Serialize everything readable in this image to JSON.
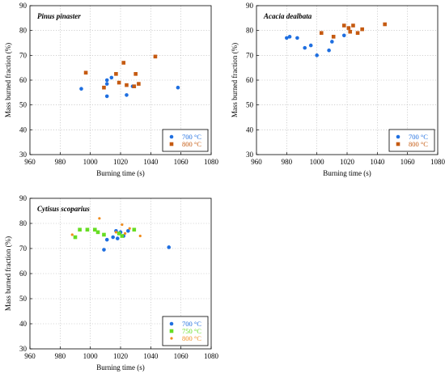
{
  "chart_data": [
    {
      "type": "scatter",
      "title": "Pinus pinaster",
      "xlabel": "Burning time (s)",
      "ylabel": "Mass burned fraction (%)",
      "xlim": [
        960,
        1080
      ],
      "ylim": [
        30,
        90
      ],
      "xticks": [
        "960",
        "980",
        "1000",
        "1020",
        "1040",
        "1060",
        "1080"
      ],
      "yticks": [
        "30",
        "40",
        "50",
        "60",
        "70",
        "80",
        "90"
      ],
      "grid": true,
      "legend_position": "bottom-right",
      "series": [
        {
          "name": "700 °C",
          "color": "#1f6fe0",
          "marker": "circle",
          "points": [
            [
              994,
              56.5
            ],
            [
              1011,
              58.5
            ],
            [
              1011,
              60.0
            ],
            [
              1011,
              53.5
            ],
            [
              1014,
              61.0
            ],
            [
              1024,
              54.0
            ],
            [
              1028,
              57.5
            ],
            [
              1058,
              57.0
            ]
          ]
        },
        {
          "name": "800 °C",
          "color": "#c55a11",
          "marker": "square",
          "points": [
            [
              997,
              63.0
            ],
            [
              1009,
              57.0
            ],
            [
              1017,
              62.5
            ],
            [
              1019,
              59.0
            ],
            [
              1022,
              67.0
            ],
            [
              1024,
              58.0
            ],
            [
              1029,
              57.5
            ],
            [
              1030,
              62.5
            ],
            [
              1032,
              58.5
            ],
            [
              1043,
              69.5
            ]
          ]
        }
      ]
    },
    {
      "type": "scatter",
      "title": "Acacia dealbata",
      "xlabel": "Burning time (s)",
      "ylabel": "Mass burned fraction (%)",
      "xlim": [
        960,
        1080
      ],
      "ylim": [
        30,
        90
      ],
      "xticks": [
        "960",
        "980",
        "1000",
        "1020",
        "1040",
        "1060",
        "1080"
      ],
      "yticks": [
        "30",
        "40",
        "50",
        "60",
        "70",
        "80",
        "90"
      ],
      "grid": true,
      "legend_position": "bottom-right",
      "series": [
        {
          "name": "700 °C",
          "color": "#1f6fe0",
          "marker": "circle",
          "points": [
            [
              980,
              77.0
            ],
            [
              982,
              77.5
            ],
            [
              987,
              77.0
            ],
            [
              992,
              73.0
            ],
            [
              996,
              74.0
            ],
            [
              1000,
              70.0
            ],
            [
              1008,
              72.0
            ],
            [
              1010,
              75.5
            ],
            [
              1018,
              78.0
            ]
          ]
        },
        {
          "name": "800 °C",
          "color": "#c55a11",
          "marker": "square",
          "points": [
            [
              1003,
              79.0
            ],
            [
              1011,
              77.5
            ],
            [
              1018,
              82.0
            ],
            [
              1021,
              81.0
            ],
            [
              1022,
              79.5
            ],
            [
              1024,
              82.0
            ],
            [
              1027,
              79.0
            ],
            [
              1030,
              80.5
            ],
            [
              1045,
              82.5
            ]
          ]
        }
      ]
    },
    {
      "type": "scatter",
      "title": "Cytisus scoparius",
      "xlabel": "Burning time (s)",
      "ylabel": "Mass burned fraction (%)",
      "xlim": [
        960,
        1080
      ],
      "ylim": [
        30,
        90
      ],
      "xticks": [
        "960",
        "980",
        "1000",
        "1020",
        "1040",
        "1060",
        "1080"
      ],
      "yticks": [
        "30",
        "40",
        "50",
        "60",
        "70",
        "80",
        "90"
      ],
      "grid": true,
      "legend_position": "bottom-right",
      "series": [
        {
          "name": "700 °C",
          "color": "#1f6fe0",
          "marker": "circle",
          "points": [
            [
              1009,
              69.5
            ],
            [
              1011,
              73.5
            ],
            [
              1015,
              74.5
            ],
            [
              1017,
              77.0
            ],
            [
              1018,
              74.0
            ],
            [
              1020,
              76.5
            ],
            [
              1022,
              75.0
            ],
            [
              1025,
              77.0
            ],
            [
              1052,
              70.5
            ]
          ]
        },
        {
          "name": "750 °C",
          "color": "#66dd22",
          "marker": "square",
          "points": [
            [
              990,
              74.5
            ],
            [
              993,
              77.5
            ],
            [
              998,
              77.5
            ],
            [
              1003,
              77.5
            ],
            [
              1005,
              76.5
            ],
            [
              1009,
              75.5
            ],
            [
              1019,
              76.0
            ],
            [
              1021,
              75.0
            ],
            [
              1029,
              77.5
            ]
          ]
        },
        {
          "name": "800 °C",
          "color": "#f08c1e",
          "marker": "small-circle",
          "points": [
            [
              988,
              75.5
            ],
            [
              1006,
              82.0
            ],
            [
              1017,
              76.5
            ],
            [
              1021,
              79.5
            ],
            [
              1023,
              76.0
            ],
            [
              1026,
              78.0
            ],
            [
              1033,
              75.0
            ]
          ]
        }
      ]
    }
  ]
}
